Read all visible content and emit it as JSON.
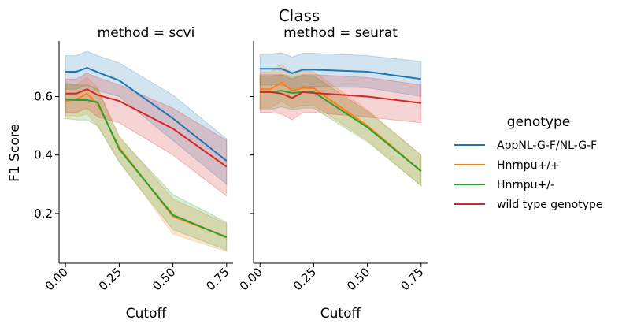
{
  "figure": {
    "title": "Class",
    "xlabel": "Cutoff",
    "ylabel": "F1 Score"
  },
  "legend": {
    "title": "genotype",
    "position": "right"
  },
  "colors": {
    "AppNL-G-F/NL-G-F": "#1f77b4",
    "Hnrnpu+/+": "#ff7f0e",
    "Hnrnpu+/-": "#2ca02c",
    "wild type genotype": "#d62728"
  },
  "chart_data": [
    {
      "type": "line",
      "title": "method = scvi",
      "xlabel": "Cutoff",
      "ylabel": "F1 Score",
      "xlim": [
        -0.03,
        0.78
      ],
      "ylim": [
        0.03,
        0.79
      ],
      "xticks": [
        "0.00",
        "0.25",
        "0.50",
        "0.75"
      ],
      "yticks": [
        "0.2",
        "0.4",
        "0.6"
      ],
      "grid": false,
      "x": [
        0.0,
        0.05,
        0.1,
        0.15,
        0.25,
        0.5,
        0.75
      ],
      "series": [
        {
          "name": "AppNL-G-F/NL-G-F",
          "values": [
            0.685,
            0.685,
            0.698,
            0.683,
            0.655,
            0.525,
            0.38
          ],
          "lower": [
            0.625,
            0.625,
            0.64,
            0.62,
            0.6,
            0.45,
            0.3
          ],
          "upper": [
            0.74,
            0.74,
            0.755,
            0.74,
            0.715,
            0.605,
            0.455
          ]
        },
        {
          "name": "Hnrnpu+/+",
          "values": [
            0.585,
            0.59,
            0.61,
            0.575,
            0.425,
            0.19,
            0.12
          ],
          "lower": [
            0.53,
            0.53,
            0.54,
            0.5,
            0.38,
            0.13,
            0.07
          ],
          "upper": [
            0.64,
            0.64,
            0.665,
            0.63,
            0.465,
            0.25,
            0.165
          ]
        },
        {
          "name": "Hnrnpu+/-",
          "values": [
            0.59,
            0.588,
            0.588,
            0.58,
            0.42,
            0.195,
            0.118
          ],
          "lower": [
            0.525,
            0.52,
            0.52,
            0.5,
            0.375,
            0.145,
            0.075
          ],
          "upper": [
            0.645,
            0.64,
            0.64,
            0.625,
            0.46,
            0.265,
            0.17
          ]
        },
        {
          "name": "wild type genotype",
          "values": [
            0.61,
            0.61,
            0.625,
            0.605,
            0.585,
            0.49,
            0.36
          ],
          "lower": [
            0.545,
            0.545,
            0.56,
            0.53,
            0.51,
            0.4,
            0.26
          ],
          "upper": [
            0.66,
            0.66,
            0.68,
            0.665,
            0.64,
            0.56,
            0.45
          ]
        }
      ]
    },
    {
      "type": "line",
      "title": "method = seurat",
      "xlabel": "Cutoff",
      "ylabel": "",
      "xlim": [
        -0.03,
        0.78
      ],
      "ylim": [
        0.03,
        0.79
      ],
      "xticks": [
        "0.00",
        "0.25",
        "0.50",
        "0.75"
      ],
      "yticks": [],
      "grid": false,
      "x": [
        0.0,
        0.05,
        0.1,
        0.15,
        0.2,
        0.25,
        0.5,
        0.75
      ],
      "series": [
        {
          "name": "AppNL-G-F/NL-G-F",
          "values": [
            0.695,
            0.695,
            0.695,
            0.68,
            0.692,
            0.692,
            0.685,
            0.66
          ],
          "lower": [
            0.64,
            0.64,
            0.64,
            0.625,
            0.635,
            0.635,
            0.63,
            0.6
          ],
          "upper": [
            0.745,
            0.745,
            0.75,
            0.735,
            0.748,
            0.748,
            0.74,
            0.72
          ]
        },
        {
          "name": "Hnrnpu+/+",
          "values": [
            0.625,
            0.625,
            0.648,
            0.62,
            0.63,
            0.628,
            0.5,
            0.345
          ],
          "lower": [
            0.56,
            0.56,
            0.585,
            0.56,
            0.57,
            0.57,
            0.45,
            0.295
          ],
          "upper": [
            0.685,
            0.685,
            0.71,
            0.68,
            0.69,
            0.685,
            0.555,
            0.4
          ]
        },
        {
          "name": "Hnrnpu+/-",
          "values": [
            0.615,
            0.615,
            0.62,
            0.612,
            0.615,
            0.615,
            0.495,
            0.345
          ],
          "lower": [
            0.555,
            0.555,
            0.565,
            0.555,
            0.56,
            0.56,
            0.445,
            0.295
          ],
          "upper": [
            0.67,
            0.67,
            0.675,
            0.67,
            0.672,
            0.67,
            0.55,
            0.4
          ]
        },
        {
          "name": "wild type genotype",
          "values": [
            0.615,
            0.615,
            0.61,
            0.595,
            0.615,
            0.612,
            0.6,
            0.578
          ],
          "lower": [
            0.545,
            0.545,
            0.54,
            0.52,
            0.545,
            0.545,
            0.53,
            0.51
          ],
          "upper": [
            0.675,
            0.675,
            0.675,
            0.66,
            0.675,
            0.675,
            0.665,
            0.64
          ]
        }
      ]
    }
  ]
}
